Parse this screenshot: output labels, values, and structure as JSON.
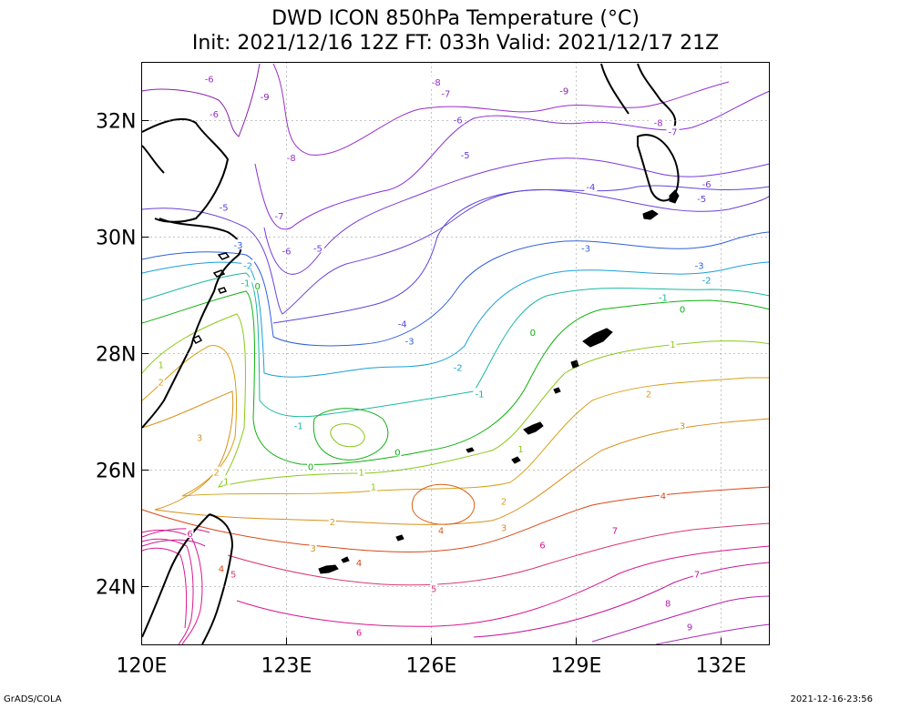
{
  "header": {
    "title": "DWD ICON 850hPa Temperature (°C)",
    "subtitle": "Init: 2021/12/16 12Z  FT: 033h  Valid: 2021/12/17 21Z"
  },
  "map": {
    "lon_range": [
      120,
      133
    ],
    "lat_range": [
      23,
      33
    ],
    "lon_ticks": [
      "120E",
      "123E",
      "126E",
      "129E",
      "132E"
    ],
    "lat_ticks": [
      "24N",
      "26N",
      "28N",
      "30N",
      "32N"
    ],
    "grid": "dotted",
    "contour_labels": [
      {
        "text": "-6",
        "lon": 121.5,
        "lat": 32.1,
        "color": "#9b2fc8"
      },
      {
        "text": "-9",
        "lon": 122.55,
        "lat": 32.4,
        "color": "#8a1fb0"
      },
      {
        "text": "-8",
        "lon": 123.1,
        "lat": 31.35,
        "color": "#9b2fc8"
      },
      {
        "text": "-6",
        "lon": 121.4,
        "lat": 32.7,
        "color": "#9b2fc8"
      },
      {
        "text": "-8",
        "lon": 126.1,
        "lat": 32.65,
        "color": "#9b2fc8"
      },
      {
        "text": "-7",
        "lon": 126.3,
        "lat": 32.45,
        "color": "#8a30d8"
      },
      {
        "text": "-6",
        "lon": 126.55,
        "lat": 32.0,
        "color": "#7a3ad8"
      },
      {
        "text": "-5",
        "lon": 126.7,
        "lat": 31.4,
        "color": "#6a40d8"
      },
      {
        "text": "-9",
        "lon": 128.75,
        "lat": 32.5,
        "color": "#8a1fb0"
      },
      {
        "text": "-8",
        "lon": 130.7,
        "lat": 31.95,
        "color": "#9b2fc8"
      },
      {
        "text": "-7",
        "lon": 131.0,
        "lat": 31.8,
        "color": "#8a30d8"
      },
      {
        "text": "-4",
        "lon": 129.3,
        "lat": 30.85,
        "color": "#5a48d8"
      },
      {
        "text": "-5",
        "lon": 131.6,
        "lat": 30.65,
        "color": "#6a40d8"
      },
      {
        "text": "-6",
        "lon": 131.7,
        "lat": 30.9,
        "color": "#7a3ad8"
      },
      {
        "text": "-5",
        "lon": 121.7,
        "lat": 30.5,
        "color": "#6a40d8"
      },
      {
        "text": "-7",
        "lon": 122.85,
        "lat": 30.35,
        "color": "#8a30d8"
      },
      {
        "text": "-6",
        "lon": 123.0,
        "lat": 29.75,
        "color": "#7a3ad8"
      },
      {
        "text": "-5",
        "lon": 123.65,
        "lat": 29.8,
        "color": "#6a40d8"
      },
      {
        "text": "-3",
        "lon": 122.0,
        "lat": 29.85,
        "color": "#3060d8"
      },
      {
        "text": "-2",
        "lon": 122.2,
        "lat": 29.5,
        "color": "#1aa0d8"
      },
      {
        "text": "-1",
        "lon": 122.15,
        "lat": 29.2,
        "color": "#18b8a0"
      },
      {
        "text": "-4",
        "lon": 125.4,
        "lat": 28.5,
        "color": "#5a48d8"
      },
      {
        "text": "-3",
        "lon": 125.55,
        "lat": 28.2,
        "color": "#3060d8"
      },
      {
        "text": "-3",
        "lon": 129.2,
        "lat": 29.8,
        "color": "#3060d8"
      },
      {
        "text": "-3",
        "lon": 131.55,
        "lat": 29.5,
        "color": "#3060d8"
      },
      {
        "text": "-2",
        "lon": 131.7,
        "lat": 29.25,
        "color": "#1aa0d8"
      },
      {
        "text": "-1",
        "lon": 130.8,
        "lat": 28.95,
        "color": "#18b8a0"
      },
      {
        "text": "0",
        "lon": 131.2,
        "lat": 28.75,
        "color": "#10b010"
      },
      {
        "text": "-2",
        "lon": 126.55,
        "lat": 27.75,
        "color": "#1aa0d8"
      },
      {
        "text": "-1",
        "lon": 127.0,
        "lat": 27.3,
        "color": "#18b8a0"
      },
      {
        "text": "0",
        "lon": 122.4,
        "lat": 29.15,
        "color": "#10b010"
      },
      {
        "text": "1",
        "lon": 120.4,
        "lat": 27.8,
        "color": "#8ac818"
      },
      {
        "text": "2",
        "lon": 120.4,
        "lat": 27.5,
        "color": "#d8a018"
      },
      {
        "text": "-1",
        "lon": 123.25,
        "lat": 26.75,
        "color": "#18b8a0"
      },
      {
        "text": "0",
        "lon": 125.3,
        "lat": 26.3,
        "color": "#10b010"
      },
      {
        "text": "0",
        "lon": 123.5,
        "lat": 26.05,
        "color": "#10b010"
      },
      {
        "text": "1",
        "lon": 124.55,
        "lat": 25.95,
        "color": "#8ac818"
      },
      {
        "text": "0",
        "lon": 128.1,
        "lat": 28.35,
        "color": "#10b010"
      },
      {
        "text": "1",
        "lon": 127.85,
        "lat": 26.35,
        "color": "#8ac818"
      },
      {
        "text": "1",
        "lon": 131.0,
        "lat": 28.15,
        "color": "#8ac818"
      },
      {
        "text": "2",
        "lon": 130.5,
        "lat": 27.3,
        "color": "#d8a018"
      },
      {
        "text": "3",
        "lon": 131.2,
        "lat": 26.75,
        "color": "#d8901a"
      },
      {
        "text": "3",
        "lon": 121.2,
        "lat": 26.55,
        "color": "#d8901a"
      },
      {
        "text": "2",
        "lon": 121.55,
        "lat": 25.95,
        "color": "#d8a018"
      },
      {
        "text": "1",
        "lon": 121.75,
        "lat": 25.8,
        "color": "#8ac818"
      },
      {
        "text": "1",
        "lon": 124.8,
        "lat": 25.7,
        "color": "#8ac818"
      },
      {
        "text": "2",
        "lon": 123.95,
        "lat": 25.1,
        "color": "#d8a018"
      },
      {
        "text": "2",
        "lon": 127.5,
        "lat": 25.45,
        "color": "#d8a018"
      },
      {
        "text": "3",
        "lon": 123.55,
        "lat": 24.65,
        "color": "#d8901a"
      },
      {
        "text": "3",
        "lon": 127.5,
        "lat": 25.0,
        "color": "#d8901a"
      },
      {
        "text": "4",
        "lon": 126.2,
        "lat": 24.95,
        "color": "#d86018"
      },
      {
        "text": "4",
        "lon": 124.5,
        "lat": 24.4,
        "color": "#d84818"
      },
      {
        "text": "4",
        "lon": 130.8,
        "lat": 25.55,
        "color": "#d84818"
      },
      {
        "text": "5",
        "lon": 126.05,
        "lat": 23.95,
        "color": "#d83870"
      },
      {
        "text": "6",
        "lon": 128.3,
        "lat": 24.7,
        "color": "#d81890"
      },
      {
        "text": "6",
        "lon": 121.0,
        "lat": 24.9,
        "color": "#d81890"
      },
      {
        "text": "5",
        "lon": 121.9,
        "lat": 24.2,
        "color": "#d83870"
      },
      {
        "text": "4",
        "lon": 121.65,
        "lat": 24.3,
        "color": "#d84818"
      },
      {
        "text": "7",
        "lon": 129.8,
        "lat": 24.95,
        "color": "#c81898"
      },
      {
        "text": "7",
        "lon": 131.5,
        "lat": 24.2,
        "color": "#c81898"
      },
      {
        "text": "8",
        "lon": 130.9,
        "lat": 23.7,
        "color": "#b820a8"
      },
      {
        "text": "9",
        "lon": 131.35,
        "lat": 23.3,
        "color": "#a828b8"
      },
      {
        "text": "6",
        "lon": 124.5,
        "lat": 23.2,
        "color": "#d81890"
      }
    ]
  },
  "footer": {
    "credit": "GrADS/COLA",
    "timestamp": "2021-12-16-23:56"
  }
}
